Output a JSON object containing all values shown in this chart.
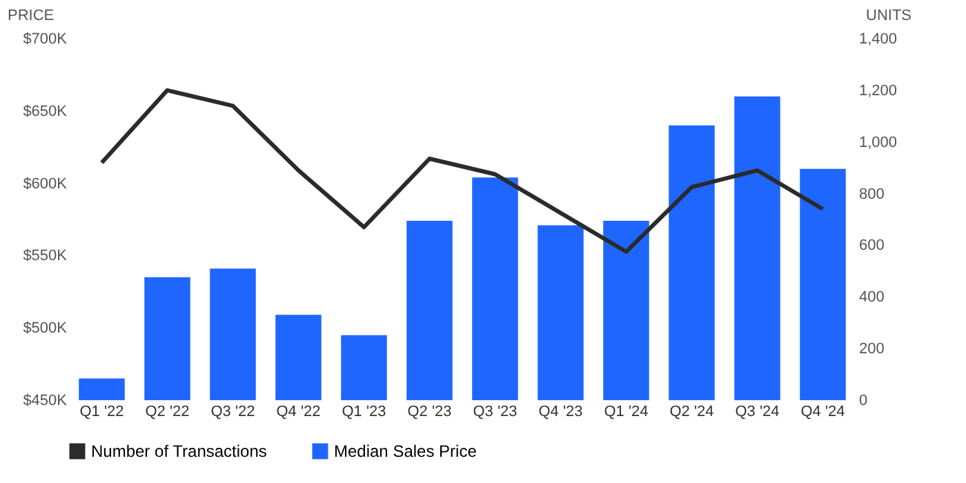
{
  "chart_data": {
    "type": "bar",
    "ylabel": "PRICE",
    "y2label": "UNITS",
    "categories": [
      "Q1 '22",
      "Q2 '22",
      "Q3 '22",
      "Q4 '22",
      "Q1 '23",
      "Q2 '23",
      "Q3 '23",
      "Q4 '23",
      "Q1 '24",
      "Q2 '24",
      "Q3 '24",
      "Q4 '24"
    ],
    "series": [
      {
        "name": "Number of Transactions",
        "type": "line",
        "axis": "y2",
        "color": "#2b2b2b",
        "values": [
          920,
          1200,
          1140,
          890,
          670,
          935,
          875,
          725,
          575,
          825,
          890,
          740
        ]
      },
      {
        "name": "Median Sales Price",
        "color": "#1f66ff",
        "values": [
          465,
          535,
          541,
          509,
          495,
          574,
          604,
          571,
          574,
          640,
          660,
          610
        ]
      }
    ],
    "ylim": [
      450,
      700
    ],
    "yticks": [
      {
        "value": 450,
        "label": "$450K"
      },
      {
        "value": 500,
        "label": "$500K"
      },
      {
        "value": 550,
        "label": "$550K"
      },
      {
        "value": 600,
        "label": "$600K"
      },
      {
        "value": 650,
        "label": "$650K"
      },
      {
        "value": 700,
        "label": "$700K"
      }
    ],
    "y2lim": [
      0,
      1400
    ],
    "y2ticks": [
      0,
      200,
      400,
      600,
      800,
      {
        "value": 1000,
        "label": "1,000"
      },
      {
        "value": 1200,
        "label": "1,200"
      },
      {
        "value": 1400,
        "label": "1,400"
      }
    ],
    "grid": false,
    "legend": "bottom"
  }
}
